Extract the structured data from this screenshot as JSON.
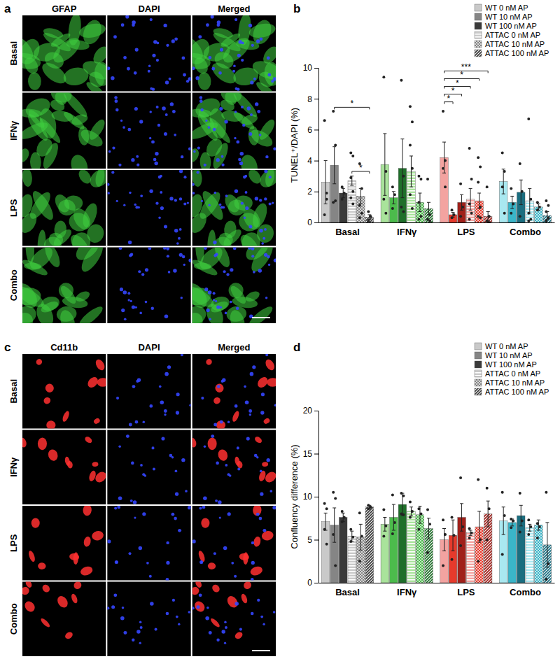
{
  "chart_data": [
    {
      "type": "bar",
      "title": "b",
      "y_label": "TUNEL⁺/DAPI (%)",
      "categories": [
        "Basal",
        "IFNγ",
        "LPS",
        "Combo"
      ],
      "ylim": [
        0,
        10
      ],
      "yticks": [
        0,
        2,
        4,
        6,
        8,
        10
      ],
      "legend": "top-right",
      "series": [
        {
          "name": "WT 0 nM AP",
          "line_style": "solid",
          "colors": [
            "#c9c9c9",
            "#a9e39b",
            "#f3a3a0",
            "#a9e8f0"
          ],
          "values": [
            2.6,
            3.75,
            4.2,
            2.65
          ],
          "errors": [
            1.4,
            2.0,
            1.0,
            0.8
          ],
          "points": [
            [
              6.6,
              1.5,
              0.5,
              1.9
            ],
            [
              9.4,
              3.3,
              1.5,
              0.6
            ],
            [
              7.2,
              4.0,
              3.5,
              2.3
            ],
            [
              4.5,
              3.3,
              2.3,
              0.6
            ]
          ]
        },
        {
          "name": "WT 10 nM AP",
          "line_style": "solid",
          "colors": [
            "#858585",
            "#4cbb4c",
            "#e63a2c",
            "#3ab5c8"
          ],
          "values": [
            3.7,
            1.6,
            0.5,
            1.3
          ],
          "errors": [
            1.2,
            0.4,
            0.15,
            0.4
          ],
          "points": [
            [
              7.2,
              5.0,
              1.3,
              1.4
            ],
            [
              2.3,
              1.8,
              0.9
            ],
            [
              0.8,
              0.5,
              0.3
            ],
            [
              2.2,
              1.2,
              0.6
            ]
          ]
        },
        {
          "name": "WT 100 nM AP",
          "line_style": "solid",
          "colors": [
            "#3a3a3a",
            "#1f6f2a",
            "#a0201a",
            "#1a6e80"
          ],
          "values": [
            1.9,
            3.5,
            1.3,
            1.95
          ],
          "errors": [
            0.3,
            1.9,
            0.5,
            0.8
          ],
          "points": [
            [
              2.3,
              1.9,
              1.5
            ],
            [
              9.2,
              3.0,
              1.0,
              0.7
            ],
            [
              2.5,
              1.0,
              0.4
            ],
            [
              3.8,
              2.0,
              0.4
            ]
          ]
        },
        {
          "name": "ATTAC 0 nM AP",
          "line_style": "horizontal",
          "colors": [
            "#c9c9c9",
            "#a9e39b",
            "#f3a3a0",
            "#a9e8f0"
          ],
          "values": [
            2.7,
            3.3,
            1.5,
            1.4
          ],
          "errors": [
            0.3,
            1.0,
            0.7,
            0.8
          ],
          "points": [
            [
              4.5,
              4.3,
              2.9,
              2.0,
              1.6,
              1.2
            ],
            [
              7.5,
              6.5,
              5.0,
              3.5,
              1.8,
              0.9
            ],
            [
              4.8,
              2.8,
              1.2,
              0.6,
              0.2
            ],
            [
              6.7,
              1.5,
              0.6,
              0.2,
              0.1
            ]
          ]
        },
        {
          "name": "ATTAC 10 nM AP",
          "line_style": "dotted",
          "colors": [
            "#858585",
            "#4cbb4c",
            "#e63a2c",
            "#3ab5c8"
          ],
          "values": [
            1.7,
            1.3,
            1.4,
            1.0
          ],
          "errors": [
            0.5,
            0.6,
            0.5,
            0.2
          ],
          "points": [
            [
              3.8,
              2.2,
              1.1,
              0.6,
              0.3
            ],
            [
              3.0,
              2.8,
              1.3,
              0.4,
              0.2
            ],
            [
              4.2,
              3.6,
              2.6,
              1.0,
              0.4,
              0.3
            ],
            [
              1.3,
              1.0,
              0.8
            ]
          ]
        },
        {
          "name": "ATTAC 100 nM AP",
          "line_style": "diagonal",
          "colors": [
            "#3a3a3a",
            "#1f6f2a",
            "#a0201a",
            "#1a6e80"
          ],
          "values": [
            0.35,
            0.9,
            0.4,
            0.45
          ],
          "errors": [
            0.15,
            0.4,
            0.3,
            0.25
          ],
          "points": [
            [
              0.7,
              0.4,
              0.1
            ],
            [
              2.8,
              0.5,
              0.2,
              0.1
            ],
            [
              2.3,
              0.4,
              0.1,
              0.0
            ],
            [
              1.4,
              1.1,
              0.7,
              0.3,
              0.1
            ]
          ]
        }
      ],
      "annotations": [
        {
          "label": "*",
          "category": 0,
          "from": 1,
          "to": 5,
          "y": 7.45
        },
        {
          "label": "*",
          "category": 0,
          "from": 3,
          "to": 5,
          "y": 3.3
        },
        {
          "label": "***",
          "category": 2,
          "from": 0,
          "to": 5,
          "y": 9.8
        },
        {
          "label": "*",
          "category": 2,
          "from": 0,
          "to": 4,
          "y": 9.3
        },
        {
          "label": "*",
          "category": 2,
          "from": 0,
          "to": 3,
          "y": 8.8
        },
        {
          "label": "*",
          "category": 2,
          "from": 0,
          "to": 2,
          "y": 8.3
        },
        {
          "label": "*",
          "category": 2,
          "from": 0,
          "to": 1,
          "y": 7.8
        }
      ]
    },
    {
      "type": "bar",
      "title": "d",
      "y_label": "Confluency difference (%)",
      "categories": [
        "Basal",
        "IFNγ",
        "LPS",
        "Combo"
      ],
      "ylim": [
        0,
        20
      ],
      "yticks": [
        0,
        5,
        10,
        15,
        20
      ],
      "legend": "top-right",
      "series": [
        {
          "name": "WT 0 nM AP",
          "line_style": "solid",
          "colors": [
            "#c9c9c9",
            "#a9e39b",
            "#f3a3a0",
            "#a9e8f0"
          ],
          "values": [
            7.1,
            6.8,
            5.0,
            7.2
          ],
          "errors": [
            1.0,
            0.8,
            1.3,
            1.6
          ],
          "points": [
            [
              9.2,
              8.6,
              6.2,
              4.5
            ],
            [
              8.5,
              6.6,
              5.4
            ],
            [
              7.3,
              5.6,
              2.0
            ],
            [
              10.5,
              7.8,
              3.3
            ]
          ]
        },
        {
          "name": "WT 10 nM AP",
          "line_style": "solid",
          "colors": [
            "#858585",
            "#4cbb4c",
            "#e63a2c",
            "#3ab5c8"
          ],
          "values": [
            6.7,
            7.6,
            5.5,
            7.0
          ],
          "errors": [
            2.0,
            1.5,
            1.8,
            0.4
          ],
          "points": [
            [
              10.5,
              9.8,
              5.6,
              2.0
            ],
            [
              10.2,
              7.0,
              5.7
            ],
            [
              7.6,
              5.5,
              2.7
            ],
            [
              7.4,
              7.2,
              6.4
            ]
          ]
        },
        {
          "name": "WT 100 nM AP",
          "line_style": "solid",
          "colors": [
            "#3a3a3a",
            "#1f6f2a",
            "#a0201a",
            "#1a6e80"
          ],
          "values": [
            7.6,
            9.1,
            7.6,
            7.8
          ],
          "errors": [
            0.5,
            1.3,
            1.6,
            1.2
          ],
          "points": [
            [
              8.3,
              7.6,
              7.1
            ],
            [
              10.4,
              10.1,
              8.0,
              7.9
            ],
            [
              12.2,
              6.5,
              4.3
            ],
            [
              10.4,
              7.2,
              5.9
            ]
          ]
        },
        {
          "name": "ATTAC 0 nM AP",
          "line_style": "horizontal",
          "colors": [
            "#c9c9c9",
            "#a9e39b",
            "#f3a3a0",
            "#a9e8f0"
          ],
          "values": [
            5.4,
            8.3,
            5.8,
            6.4
          ],
          "errors": [
            0.6,
            0.5,
            0.3,
            0.4
          ],
          "points": [
            [
              6.2,
              5.3,
              4.8
            ],
            [
              9.4,
              8.3,
              7.6
            ],
            [
              6.3,
              5.8,
              5.2
            ],
            [
              7.3,
              6.5,
              5.6
            ]
          ]
        },
        {
          "name": "ATTAC 10 nM AP",
          "line_style": "dotted",
          "colors": [
            "#858585",
            "#4cbb4c",
            "#e63a2c",
            "#3ab5c8"
          ],
          "values": [
            5.3,
            7.9,
            6.5,
            6.7
          ],
          "errors": [
            1.5,
            1.0,
            1.8,
            0.6
          ],
          "points": [
            [
              8.1,
              5.4,
              2.5
            ],
            [
              8.6,
              8.0,
              6.2
            ],
            [
              12.0,
              5.0,
              2.5
            ],
            [
              6.9,
              6.5,
              5.2
            ]
          ]
        },
        {
          "name": "ATTAC 100 nM AP",
          "line_style": "diagonal",
          "colors": [
            "#3a3a3a",
            "#1f6f2a",
            "#a0201a",
            "#1a6e80"
          ],
          "values": [
            8.8,
            6.3,
            8.0,
            4.4
          ],
          "errors": [
            0.2,
            1.2,
            1.5,
            2.6
          ],
          "points": [
            [
              9.0,
              8.8,
              8.6
            ],
            [
              8.5,
              6.8,
              3.5
            ],
            [
              11.0,
              8.6,
              5.0
            ],
            [
              10.5,
              2.2,
              0.4
            ]
          ]
        }
      ]
    }
  ],
  "images": [
    {
      "label": "a",
      "columns": [
        "GFAP",
        "DAPI",
        "Merged"
      ],
      "rows": [
        "Basal",
        "IFNγ",
        "LPS",
        "Combo"
      ]
    },
    {
      "label": "c",
      "columns": [
        "Cd11b",
        "DAPI",
        "Merged"
      ],
      "rows": [
        "Basal",
        "IFNγ",
        "LPS",
        "Combo"
      ]
    }
  ]
}
